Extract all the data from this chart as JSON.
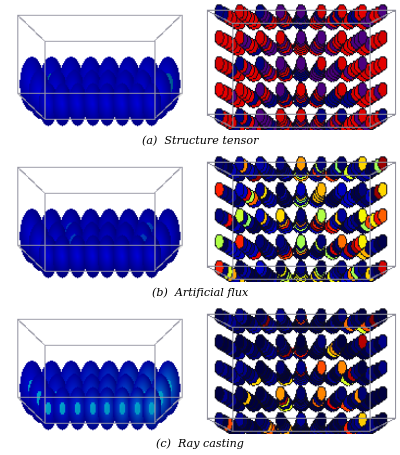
{
  "figure_width": 4.0,
  "figure_height": 4.55,
  "dpi": 100,
  "background_color": "#ffffff",
  "captions": [
    {
      "text": "(a)  Structure tensor"
    },
    {
      "text": "(b)  Artificial flux"
    },
    {
      "text": "(c)  Ray casting"
    }
  ],
  "caption_fontsize": 8,
  "caption_fontstyle": "italic",
  "n_rows": 3,
  "n_cols": 2,
  "left_bg": "#f0f0f0",
  "right_bg": "#f8f8f8",
  "box_color": "#cccccc",
  "grid_color": "#dddddd"
}
